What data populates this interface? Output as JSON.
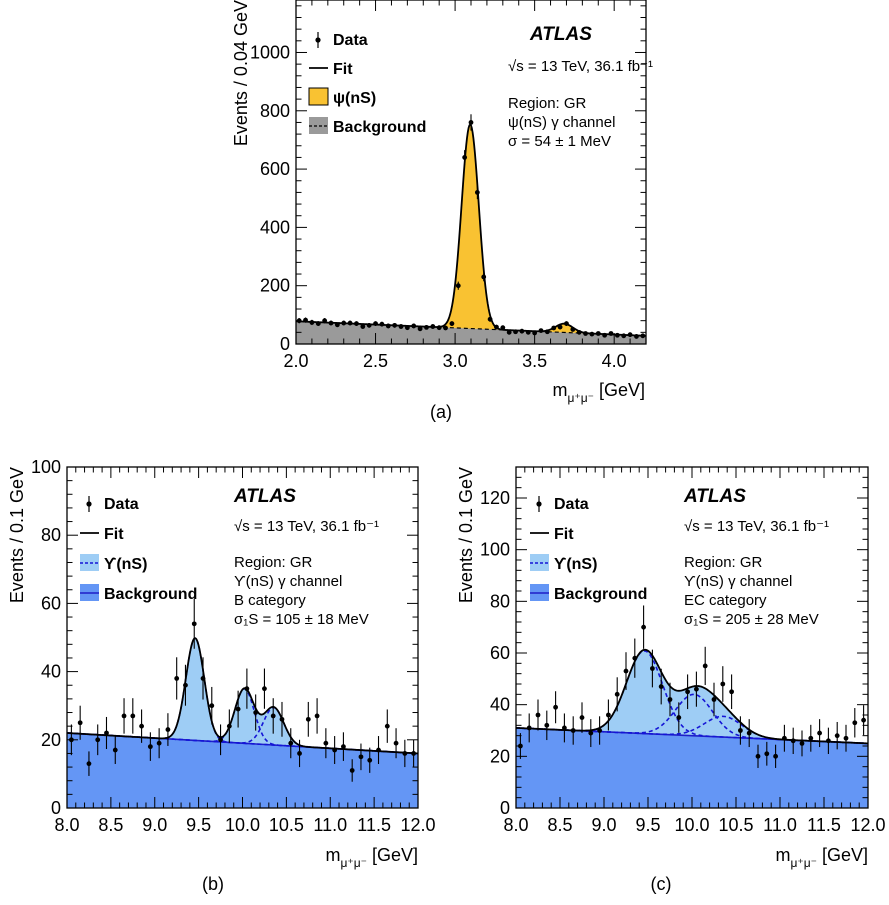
{
  "colors": {
    "psi_fill": "#f9c232",
    "psi_bg": "#9a9a9a",
    "ups_signal_fill": "#9ecdf5",
    "ups_bg_fill": "#6496f5",
    "ups_signal_line": "#1515d6",
    "ups_bg_line": "#1f1fc8",
    "fit_line": "#000000",
    "data": "#000000"
  },
  "chart_data": [
    {
      "id": "a",
      "type": "scatter",
      "caption": "(a)",
      "xlabel": "m",
      "xlabel_sub": "μ⁺μ⁻",
      "xlabel_unit": "[GeV]",
      "ylabel": "Events / 0.04 GeV",
      "xlim": [
        2.0,
        4.2
      ],
      "ylim": [
        0,
        1180
      ],
      "xticks": [
        2.0,
        2.5,
        3.0,
        3.5,
        4.0
      ],
      "xtick_labels": [
        "2.0",
        "2.5",
        "3.0",
        "3.5",
        "4.0"
      ],
      "yticks": [
        0,
        200,
        400,
        600,
        800,
        1000
      ],
      "ytick_labels": [
        "0",
        "200",
        "400",
        "600",
        "800",
        "1000"
      ],
      "atlas_label": "ATLAS",
      "lumi_label": "√s = 13 TeV, 36.1 fb⁻¹",
      "info_lines": [
        "Region: GR",
        "ψ(nS) γ channel",
        "σ = 54 ± 1 MeV"
      ],
      "legend": [
        "Data",
        "Fit",
        "ψ(nS)",
        "Background"
      ],
      "legend_position": "top-left",
      "model": {
        "background": {
          "type": "linear",
          "x0": 2.0,
          "y0": 78,
          "x1": 4.2,
          "y1": 28
        },
        "peaks": [
          {
            "name": "J/psi",
            "mean": 3.095,
            "sigma": 0.054,
            "amp": 700
          },
          {
            "name": "psi(2S)",
            "mean": 3.686,
            "sigma": 0.054,
            "amp": 30
          }
        ]
      },
      "points": {
        "x": [
          2.02,
          2.06,
          2.1,
          2.14,
          2.18,
          2.22,
          2.26,
          2.3,
          2.34,
          2.38,
          2.42,
          2.46,
          2.5,
          2.54,
          2.58,
          2.62,
          2.66,
          2.7,
          2.74,
          2.78,
          2.82,
          2.86,
          2.9,
          2.94,
          2.98,
          3.02,
          3.06,
          3.1,
          3.14,
          3.18,
          3.22,
          3.26,
          3.3,
          3.34,
          3.38,
          3.42,
          3.46,
          3.5,
          3.54,
          3.58,
          3.62,
          3.66,
          3.7,
          3.74,
          3.78,
          3.82,
          3.86,
          3.9,
          3.94,
          3.98,
          4.02,
          4.06,
          4.1,
          4.14,
          4.18
        ],
        "y": [
          80,
          82,
          74,
          70,
          80,
          72,
          66,
          72,
          72,
          70,
          60,
          64,
          70,
          68,
          62,
          64,
          60,
          56,
          62,
          52,
          57,
          60,
          56,
          55,
          70,
          200,
          640,
          760,
          520,
          230,
          85,
          58,
          56,
          40,
          42,
          44,
          40,
          38,
          46,
          42,
          55,
          58,
          70,
          50,
          40,
          36,
          34,
          36,
          30,
          36,
          30,
          28,
          32,
          26,
          28
        ],
        "err": [
          9,
          9,
          9,
          8,
          9,
          8,
          8,
          8,
          8,
          8,
          8,
          8,
          8,
          8,
          8,
          8,
          8,
          7,
          8,
          7,
          7,
          8,
          7,
          7,
          8,
          14,
          25,
          28,
          23,
          15,
          9,
          8,
          7,
          6,
          6,
          7,
          6,
          6,
          7,
          6,
          7,
          8,
          8,
          7,
          6,
          6,
          6,
          6,
          5,
          6,
          5,
          5,
          6,
          5,
          5
        ]
      }
    },
    {
      "id": "b",
      "type": "scatter",
      "caption": "(b)",
      "xlabel": "m",
      "xlabel_sub": "μ⁺μ⁻",
      "xlabel_unit": "[GeV]",
      "ylabel": "Events / 0.1 GeV",
      "xlim": [
        8.0,
        12.0
      ],
      "ylim": [
        0,
        100
      ],
      "xticks": [
        8.0,
        8.5,
        9.0,
        9.5,
        10.0,
        10.5,
        11.0,
        11.5,
        12.0
      ],
      "xtick_labels": [
        "8.0",
        "8.5",
        "9.0",
        "9.5",
        "10.0",
        "10.5",
        "11.0",
        "11.5",
        "12.0"
      ],
      "yticks": [
        0,
        20,
        40,
        60,
        80,
        100
      ],
      "ytick_labels": [
        "0",
        "20",
        "40",
        "60",
        "80",
        "100"
      ],
      "atlas_label": "ATLAS",
      "lumi_label": "√s = 13 TeV, 36.1 fb⁻¹",
      "info_lines": [
        "Region: GR",
        "ϒ(nS) γ channel",
        "B category",
        "σ₁S = 105 ± 18 MeV"
      ],
      "legend": [
        "Data",
        "Fit",
        "ϒ(nS)",
        "Background"
      ],
      "legend_position": "top-left",
      "model": {
        "background": {
          "type": "linear",
          "x0": 8.0,
          "y0": 22,
          "x1": 12.0,
          "y1": 16
        },
        "peaks": [
          {
            "name": "Y(1S)",
            "mean": 9.46,
            "sigma": 0.105,
            "amp": 30
          },
          {
            "name": "Y(2S)",
            "mean": 10.023,
            "sigma": 0.11,
            "amp": 16
          },
          {
            "name": "Y(3S)",
            "mean": 10.355,
            "sigma": 0.115,
            "amp": 11
          }
        ]
      },
      "points": {
        "x": [
          8.05,
          8.15,
          8.25,
          8.35,
          8.45,
          8.55,
          8.65,
          8.75,
          8.85,
          8.95,
          9.05,
          9.15,
          9.25,
          9.35,
          9.45,
          9.55,
          9.65,
          9.75,
          9.85,
          9.95,
          10.05,
          10.15,
          10.25,
          10.35,
          10.45,
          10.55,
          10.65,
          10.75,
          10.85,
          10.95,
          11.05,
          11.15,
          11.25,
          11.35,
          11.45,
          11.55,
          11.65,
          11.75,
          11.85,
          11.95
        ],
        "y": [
          20,
          25,
          13,
          20,
          22,
          17,
          27,
          27,
          24,
          18,
          19,
          23,
          38,
          36,
          54,
          38,
          30,
          20,
          24,
          29,
          35,
          28,
          35,
          27,
          26,
          19,
          16,
          26,
          27,
          19,
          17,
          18,
          11,
          15,
          14,
          17,
          24,
          19,
          16,
          16
        ],
        "err": [
          4.5,
          5,
          3.6,
          4.5,
          4.7,
          4.1,
          5.2,
          5.2,
          4.9,
          4.2,
          4.4,
          4.8,
          6.2,
          6,
          7.3,
          6.2,
          5.5,
          4.5,
          4.9,
          5.4,
          5.9,
          5.3,
          5.9,
          5.2,
          5.1,
          4.4,
          4,
          5.1,
          5.2,
          4.4,
          4.1,
          4.2,
          3.3,
          3.9,
          3.7,
          4.1,
          4.9,
          4.4,
          4,
          4
        ]
      }
    },
    {
      "id": "c",
      "type": "scatter",
      "caption": "(c)",
      "xlabel": "m",
      "xlabel_sub": "μ⁺μ⁻",
      "xlabel_unit": "[GeV]",
      "ylabel": "Events / 0.1 GeV",
      "xlim": [
        8.0,
        12.0
      ],
      "ylim": [
        0,
        132
      ],
      "xticks": [
        8.0,
        8.5,
        9.0,
        9.5,
        10.0,
        10.5,
        11.0,
        11.5,
        12.0
      ],
      "xtick_labels": [
        "8.0",
        "8.5",
        "9.0",
        "9.5",
        "10.0",
        "10.5",
        "11.0",
        "11.5",
        "12.0"
      ],
      "yticks": [
        0,
        20,
        40,
        60,
        80,
        100,
        120
      ],
      "ytick_labels": [
        "0",
        "20",
        "40",
        "60",
        "80",
        "100",
        "120"
      ],
      "atlas_label": "ATLAS",
      "lumi_label": "√s = 13 TeV, 36.1 fb⁻¹",
      "info_lines": [
        "Region: GR",
        "ϒ(nS) γ channel",
        "EC category",
        "σ₁S = 205 ± 28 MeV"
      ],
      "legend": [
        "Data",
        "Fit",
        "ϒ(nS)",
        "Background"
      ],
      "legend_position": "top-left",
      "model": {
        "background": {
          "type": "linear",
          "x0": 8.0,
          "y0": 31,
          "x1": 12.0,
          "y1": 25
        },
        "peaks": [
          {
            "name": "Y(1S)",
            "mean": 9.46,
            "sigma": 0.205,
            "amp": 32
          },
          {
            "name": "Y(2S)",
            "mean": 10.023,
            "sigma": 0.21,
            "amp": 16
          },
          {
            "name": "Y(3S)",
            "mean": 10.355,
            "sigma": 0.215,
            "amp": 8
          }
        ]
      },
      "points": {
        "x": [
          8.05,
          8.15,
          8.25,
          8.35,
          8.45,
          8.55,
          8.65,
          8.75,
          8.85,
          8.95,
          9.05,
          9.15,
          9.25,
          9.35,
          9.45,
          9.55,
          9.65,
          9.75,
          9.85,
          9.95,
          10.05,
          10.15,
          10.25,
          10.35,
          10.45,
          10.55,
          10.65,
          10.75,
          10.85,
          10.95,
          11.05,
          11.15,
          11.25,
          11.35,
          11.45,
          11.55,
          11.65,
          11.75,
          11.85,
          11.95
        ],
        "y": [
          24,
          31,
          36,
          32,
          39,
          31,
          30,
          35,
          29,
          30,
          36,
          44,
          53,
          58,
          70,
          54,
          47,
          42,
          35,
          45,
          46,
          55,
          42,
          48,
          45,
          30,
          29,
          20,
          21,
          20,
          27,
          26,
          25,
          27,
          29,
          26,
          28,
          27,
          33,
          34
        ],
        "err": [
          5,
          5.6,
          6,
          5.7,
          6.2,
          5.6,
          5.5,
          5.9,
          5.4,
          5.5,
          6,
          6.6,
          7.3,
          7.6,
          8.4,
          7.3,
          6.9,
          6.5,
          5.9,
          6.7,
          6.8,
          7.4,
          6.5,
          6.9,
          6.7,
          5.5,
          5.4,
          4.5,
          4.6,
          4.5,
          5.2,
          5.1,
          5,
          5.2,
          5.4,
          5.1,
          5.3,
          5.2,
          5.7,
          5.8
        ]
      }
    }
  ]
}
